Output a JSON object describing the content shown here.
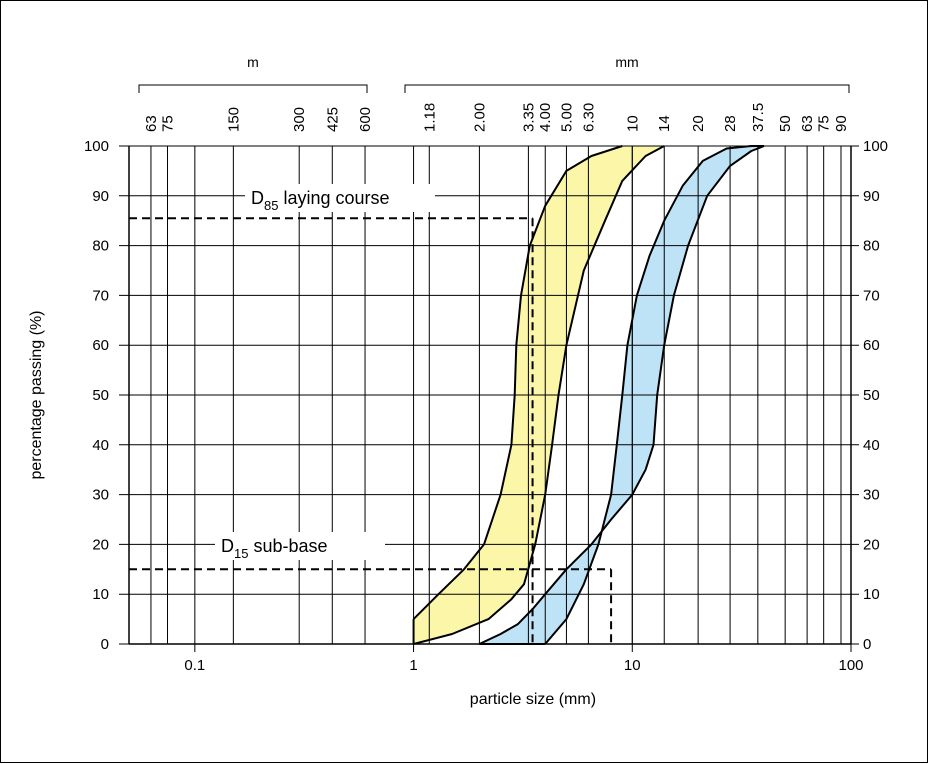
{
  "chart_data": {
    "type": "area",
    "xlabel": "particle size (mm)",
    "ylabel": "percentage passing (%)",
    "x_scale": "log",
    "xlim": [
      0.05,
      100
    ],
    "ylim": [
      0,
      100
    ],
    "grid": true,
    "bottom_ticks": [
      "0.1",
      "1",
      "10",
      "100"
    ],
    "bottom_tick_values": [
      0.1,
      1,
      10,
      100
    ],
    "y_ticks": [
      0,
      10,
      20,
      30,
      40,
      50,
      60,
      70,
      80,
      90,
      100
    ],
    "top_group_m": {
      "unit": "m",
      "labels": [
        "63",
        "75",
        "150",
        "300",
        "425",
        "600"
      ],
      "values": [
        0.063,
        0.075,
        0.15,
        0.3,
        0.425,
        0.6
      ]
    },
    "top_group_mm": {
      "unit": "mm",
      "labels": [
        "1.18",
        "2.00",
        "3.35",
        "4.00",
        "5.00",
        "6.30",
        "10",
        "14",
        "20",
        "28",
        "37.5",
        "50",
        "63",
        "75",
        "90"
      ],
      "values": [
        1.18,
        2.0,
        3.35,
        4.0,
        5.0,
        6.3,
        10,
        14,
        20,
        28,
        37.5,
        50,
        63,
        75,
        90
      ]
    },
    "bands": [
      {
        "color": "#fbf6a8",
        "lower": {
          "x": [
            1.0,
            1.5,
            2.2,
            2.8,
            3.2,
            3.6,
            4.0,
            4.3,
            4.6,
            5.0,
            6.0,
            7.5,
            9.0,
            11.5,
            14.0
          ],
          "y": [
            0,
            2,
            5,
            9,
            12,
            20,
            30,
            40,
            50,
            60,
            75,
            85,
            93,
            98,
            100
          ]
        },
        "upper": {
          "x": [
            1.0,
            1.3,
            1.7,
            2.1,
            2.5,
            2.8,
            2.9,
            2.95,
            3.1,
            3.4,
            4.0,
            5.0,
            6.5,
            9.0
          ],
          "y": [
            5,
            10,
            15,
            20,
            30,
            40,
            50,
            60,
            70,
            80,
            88,
            95,
            98,
            100
          ]
        }
      },
      {
        "color": "#bfe3f6",
        "lower": {
          "x": [
            2.0,
            2.5,
            3.0,
            3.5,
            4.0,
            5.0,
            6.5,
            8.0,
            10.0,
            11.5,
            12.5,
            13.0,
            14.0,
            15.5,
            18.0,
            22.0,
            28.0,
            35.0,
            40.0
          ],
          "y": [
            0,
            2,
            4,
            7,
            10,
            15,
            20,
            25,
            30,
            35,
            40,
            50,
            60,
            70,
            80,
            90,
            96,
            99,
            100
          ]
        },
        "upper": {
          "x": [
            4.0,
            5.0,
            6.0,
            7.0,
            8.0,
            8.5,
            9.0,
            9.5,
            10.5,
            12.0,
            14.0,
            17.0,
            21.0,
            27.0,
            35.0,
            40.0
          ],
          "y": [
            0,
            5,
            12,
            20,
            30,
            40,
            50,
            60,
            70,
            78,
            85,
            92,
            97,
            99.5,
            100,
            100
          ]
        }
      }
    ],
    "annotations": [
      {
        "label": "laying course",
        "symbol": "D",
        "subscript": "85",
        "y": 85.5,
        "x": 3.5
      },
      {
        "label": "sub-base",
        "symbol": "D",
        "subscript": "15",
        "y": 15,
        "x": 8.0
      }
    ]
  }
}
